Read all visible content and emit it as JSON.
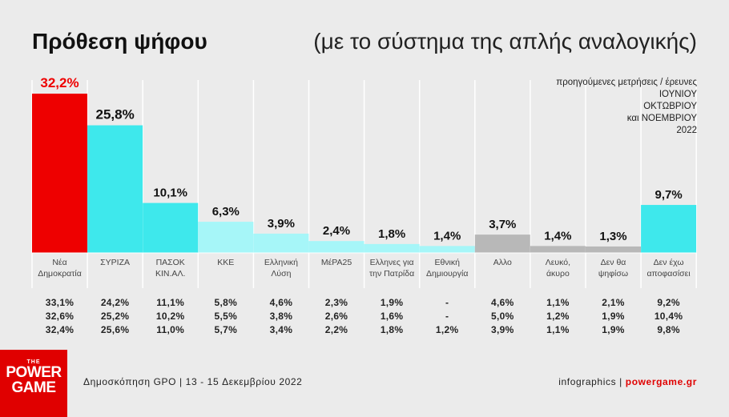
{
  "header": {
    "title": "Πρόθεση ψήφου",
    "subtitle": "(με το σύστημα της απλής αναλογικής)"
  },
  "note_lines": [
    "προηγούμενες μετρήσεις / έρευνες",
    "ΙΟΥΝΙΟΥ",
    "ΟΚΤΩΒΡΙΟΥ",
    "και ΝΟΕΜΒΡΙΟΥ",
    "2022"
  ],
  "chart_data": {
    "type": "bar",
    "categories": [
      [
        "Νέα",
        "Δημοκρατία"
      ],
      [
        "ΣΥΡΙΖΑ"
      ],
      [
        "ΠΑΣΟΚ",
        "ΚΙΝ.ΑΛ."
      ],
      [
        "ΚΚΕ"
      ],
      [
        "Ελληνική",
        "Λύση"
      ],
      [
        "ΜέΡΑ25"
      ],
      [
        "Ελληνες για",
        "την Πατρίδα"
      ],
      [
        "Εθνική",
        "Δημιουργία"
      ],
      [
        "Αλλο"
      ],
      [
        "Λευκό,",
        "άκυρο"
      ],
      [
        "Δεν θα",
        "ψηφίσω"
      ],
      [
        "Δεν έχω",
        "αποφασίσει"
      ]
    ],
    "values": [
      32.2,
      25.8,
      10.1,
      6.3,
      3.9,
      2.4,
      1.8,
      1.4,
      3.7,
      1.4,
      1.3,
      9.7
    ],
    "value_labels": [
      "32,2%",
      "25,8%",
      "10,1%",
      "6,3%",
      "3,9%",
      "2,4%",
      "1,8%",
      "1,4%",
      "3,7%",
      "1,4%",
      "1,3%",
      "9,7%"
    ],
    "colors": [
      "#ee0000",
      "#3ee8ec",
      "#3ee8ec",
      "#a6f6f8",
      "#a6f6f8",
      "#a6f6f8",
      "#a6f6f8",
      "#a6f6f8",
      "#b8b8b8",
      "#b8b8b8",
      "#b8b8b8",
      "#3ee8ec"
    ],
    "label_colors": [
      "#ee0000",
      "#111111",
      "#111111",
      "#111111",
      "#111111",
      "#111111",
      "#111111",
      "#111111",
      "#111111",
      "#111111",
      "#111111",
      "#111111"
    ],
    "ylim": [
      0,
      32.2
    ],
    "grid": false
  },
  "previous_measurements": [
    [
      "33,1%",
      "24,2%",
      "11,1%",
      "5,8%",
      "4,6%",
      "2,3%",
      "1,9%",
      "-",
      "4,6%",
      "1,1%",
      "2,1%",
      "9,2%"
    ],
    [
      "32,6%",
      "25,2%",
      "10,2%",
      "5,5%",
      "3,8%",
      "2,6%",
      "1,6%",
      "-",
      "5,0%",
      "1,2%",
      "1,9%",
      "10,4%"
    ],
    [
      "32,4%",
      "25,6%",
      "11,0%",
      "5,7%",
      "3,4%",
      "2,2%",
      "1,8%",
      "1,2%",
      "3,9%",
      "1,1%",
      "1,9%",
      "9,8%"
    ]
  ],
  "logo": {
    "the": "THE",
    "line1": "POWER",
    "line2": "GAME"
  },
  "footer": {
    "source": "Δημοσκόπηση GPO | 13 - 15 Δεκεμβρίου 2022",
    "credit_prefix": "infographics | ",
    "site": "powergame.gr"
  }
}
